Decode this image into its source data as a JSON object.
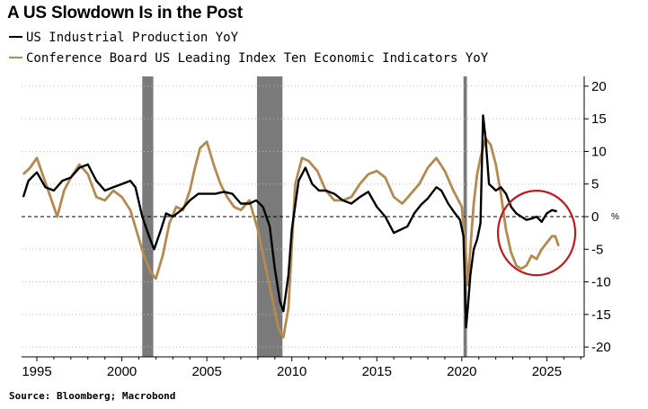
{
  "header": {
    "title": "A US Slowdown Is in the Post"
  },
  "legend": {
    "ip_label": "US Industrial Production YoY",
    "lei_label": "Conference Board US Leading Index Ten Economic Indicators YoY"
  },
  "footer": {
    "source": "Source: Bloomberg; Macrobond"
  },
  "colors": {
    "industrial_production": "#000000",
    "leading_index": "#b48a50",
    "recession": "#7a7a7a",
    "circle": "#c0181e",
    "grid": "#bbbbbb"
  },
  "chart_data": {
    "type": "line",
    "title": "A US Slowdown Is in the Post",
    "xlim": [
      1994.1,
      2027.2
    ],
    "ylim": [
      -21.5,
      21.5
    ],
    "y_axis_side": "right",
    "y_ticks": [
      20,
      15,
      10,
      5,
      0,
      -5,
      -10,
      -15,
      -20
    ],
    "x_ticks": [
      1995,
      2000,
      2005,
      2010,
      2015,
      2020,
      2025
    ],
    "y_unit_label": "%",
    "grid": "horizontal dotted",
    "zero_line": "dashed",
    "recessions": [
      [
        2001.2,
        2001.85
      ],
      [
        2007.95,
        2009.45
      ],
      [
        2020.1,
        2020.3
      ]
    ],
    "annotation": {
      "type": "circle",
      "center": [
        2024.4,
        -2.5
      ],
      "note": "red ellipse around recent readings"
    },
    "series": [
      {
        "name": "US Industrial Production YoY",
        "color_key": "industrial_production",
        "x": [
          1994.2,
          1994.5,
          1995.0,
          1995.5,
          1996.0,
          1996.5,
          1997.0,
          1997.5,
          1998.0,
          1998.5,
          1999.0,
          1999.5,
          2000.0,
          2000.5,
          2000.8,
          2001.2,
          2001.6,
          2001.9,
          2002.3,
          2002.6,
          2003.0,
          2003.5,
          2004.0,
          2004.5,
          2005.0,
          2005.5,
          2006.0,
          2006.5,
          2007.0,
          2007.5,
          2007.9,
          2008.3,
          2008.7,
          2009.0,
          2009.3,
          2009.5,
          2009.8,
          2010.0,
          2010.4,
          2010.8,
          2011.2,
          2011.6,
          2012.0,
          2012.5,
          2013.0,
          2013.5,
          2014.0,
          2014.5,
          2015.0,
          2015.5,
          2016.0,
          2016.4,
          2016.8,
          2017.2,
          2017.6,
          2018.0,
          2018.5,
          2018.8,
          2019.2,
          2019.6,
          2019.9,
          2020.1,
          2020.25,
          2020.35,
          2020.5,
          2020.7,
          2020.9,
          2021.1,
          2021.25,
          2021.4,
          2021.6,
          2021.8,
          2022.0,
          2022.3,
          2022.6,
          2022.9,
          2023.2,
          2023.5,
          2023.8,
          2024.1,
          2024.4,
          2024.7,
          2025.0,
          2025.3,
          2025.6
        ],
        "values": [
          3.0,
          5.5,
          6.8,
          4.5,
          4.0,
          5.5,
          6.0,
          7.5,
          8.0,
          5.5,
          4.0,
          4.5,
          5.0,
          5.5,
          4.5,
          0.0,
          -3.0,
          -5.0,
          -2.0,
          0.5,
          0.0,
          1.0,
          2.5,
          3.5,
          3.5,
          3.5,
          3.8,
          3.5,
          2.0,
          2.0,
          2.5,
          1.5,
          -1.5,
          -8.0,
          -13.0,
          -14.5,
          -9.0,
          -2.0,
          5.5,
          7.5,
          5.0,
          4.0,
          4.0,
          3.5,
          2.5,
          2.0,
          3.0,
          3.8,
          1.5,
          0.0,
          -2.5,
          -2.0,
          -1.5,
          0.5,
          1.8,
          2.8,
          4.5,
          4.0,
          2.0,
          0.5,
          -0.5,
          -3.0,
          -17.0,
          -14.0,
          -9.0,
          -5.0,
          -3.5,
          -1.0,
          15.5,
          12.0,
          5.0,
          4.5,
          4.0,
          4.5,
          3.5,
          1.5,
          0.5,
          0.0,
          -0.5,
          -0.3,
          0.0,
          -0.8,
          0.5,
          1.0,
          0.8
        ]
      },
      {
        "name": "Conference Board US Leading Index Ten Economic Indicators YoY",
        "color_key": "leading_index",
        "x": [
          1994.2,
          1994.6,
          1995.0,
          1995.4,
          1995.8,
          1996.2,
          1996.6,
          1997.0,
          1997.5,
          1998.0,
          1998.5,
          1999.0,
          1999.5,
          2000.0,
          2000.5,
          2000.9,
          2001.3,
          2001.7,
          2002.0,
          2002.4,
          2002.8,
          2003.2,
          2003.6,
          2004.0,
          2004.3,
          2004.6,
          2005.0,
          2005.4,
          2005.8,
          2006.2,
          2006.6,
          2007.0,
          2007.5,
          2008.0,
          2008.4,
          2008.8,
          2009.2,
          2009.5,
          2009.8,
          2010.2,
          2010.6,
          2011.0,
          2011.5,
          2012.0,
          2012.5,
          2013.0,
          2013.5,
          2014.0,
          2014.5,
          2015.0,
          2015.5,
          2016.0,
          2016.5,
          2017.0,
          2017.5,
          2018.0,
          2018.5,
          2019.0,
          2019.5,
          2020.0,
          2020.2,
          2020.35,
          2020.5,
          2020.7,
          2020.9,
          2021.1,
          2021.4,
          2021.7,
          2022.0,
          2022.3,
          2022.6,
          2022.9,
          2023.2,
          2023.5,
          2023.8,
          2024.1,
          2024.4,
          2024.7,
          2025.0,
          2025.3,
          2025.5,
          2025.7
        ],
        "values": [
          6.5,
          7.5,
          9.0,
          6.0,
          3.0,
          0.0,
          4.0,
          6.0,
          8.0,
          6.5,
          3.0,
          2.5,
          4.0,
          3.0,
          1.0,
          -2.5,
          -6.0,
          -8.5,
          -9.5,
          -6.0,
          -1.0,
          1.5,
          1.0,
          4.0,
          7.5,
          10.5,
          11.5,
          8.0,
          5.0,
          3.0,
          1.5,
          1.0,
          2.5,
          -2.0,
          -7.0,
          -12.0,
          -17.0,
          -18.5,
          -14.0,
          5.0,
          9.0,
          8.5,
          7.0,
          4.0,
          2.5,
          2.5,
          3.0,
          5.0,
          6.5,
          7.0,
          6.0,
          3.0,
          2.0,
          3.5,
          5.0,
          7.5,
          9.0,
          7.0,
          4.0,
          1.5,
          -4.0,
          -10.5,
          -5.0,
          2.0,
          6.5,
          9.0,
          12.0,
          11.0,
          8.0,
          3.5,
          -2.0,
          -5.5,
          -7.5,
          -8.0,
          -7.5,
          -6.0,
          -6.5,
          -5.0,
          -4.0,
          -3.0,
          -3.0,
          -4.5
        ]
      }
    ]
  }
}
